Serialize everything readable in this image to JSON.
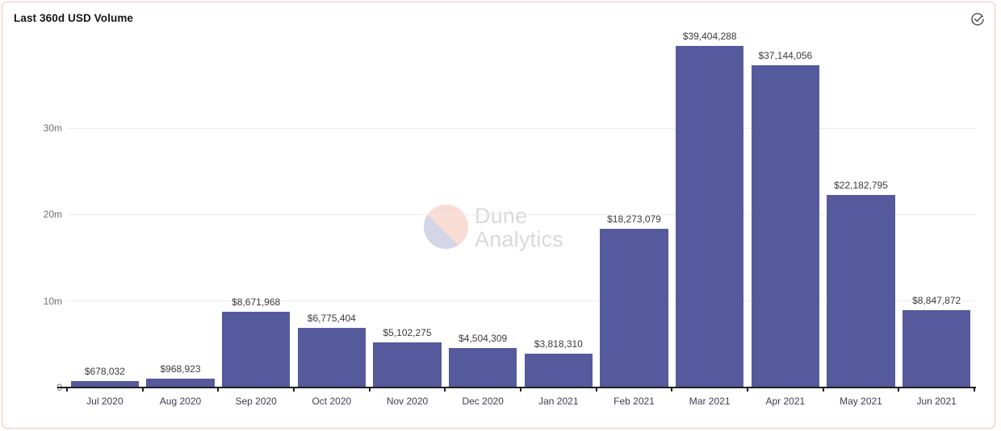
{
  "card": {
    "title": "Last 360d USD Volume"
  },
  "header": {
    "status_icon": "check-circle-icon"
  },
  "watermark": {
    "line1": "Dune",
    "line2": "Analytics"
  },
  "colors": {
    "bar": "#555a9d",
    "card_border": "#f3c5bd",
    "gridline": "#ececec",
    "axis_line": "#1f1f1f",
    "ytick_text": "#6f6f6f",
    "xtick_text": "#3b3d4e",
    "value_text": "#3a3a3a",
    "watermark_text": "#d9d9d9",
    "watermark_salmon": "#f9dcd3",
    "watermark_lavender": "#d5d5e8"
  },
  "chart_data": {
    "type": "bar",
    "title": "Last 360d USD Volume",
    "categories": [
      "Jul 2020",
      "Aug 2020",
      "Sep 2020",
      "Oct 2020",
      "Nov 2020",
      "Dec 2020",
      "Jan 2021",
      "Feb 2021",
      "Mar 2021",
      "Apr 2021",
      "May 2021",
      "Jun 2021"
    ],
    "values": [
      678032,
      968923,
      8671968,
      6775404,
      5102275,
      4504309,
      3818310,
      18273079,
      39404288,
      37144056,
      22182795,
      8847872
    ],
    "value_labels": [
      "$678,032",
      "$968,923",
      "$8,671,968",
      "$6,775,404",
      "$5,102,275",
      "$4,504,309",
      "$3,818,310",
      "$18,273,079",
      "$39,404,288",
      "$37,144,056",
      "$22,182,795",
      "$8,847,872"
    ],
    "xlabel": "",
    "ylabel": "",
    "yticks": [
      {
        "value": 0,
        "label": "0"
      },
      {
        "value": 10000000,
        "label": "10m"
      },
      {
        "value": 20000000,
        "label": "20m"
      },
      {
        "value": 30000000,
        "label": "30m"
      }
    ],
    "ylim": [
      0,
      41500000
    ],
    "grid": "horizontal",
    "legend": "none",
    "bar_color": "#555a9d"
  }
}
